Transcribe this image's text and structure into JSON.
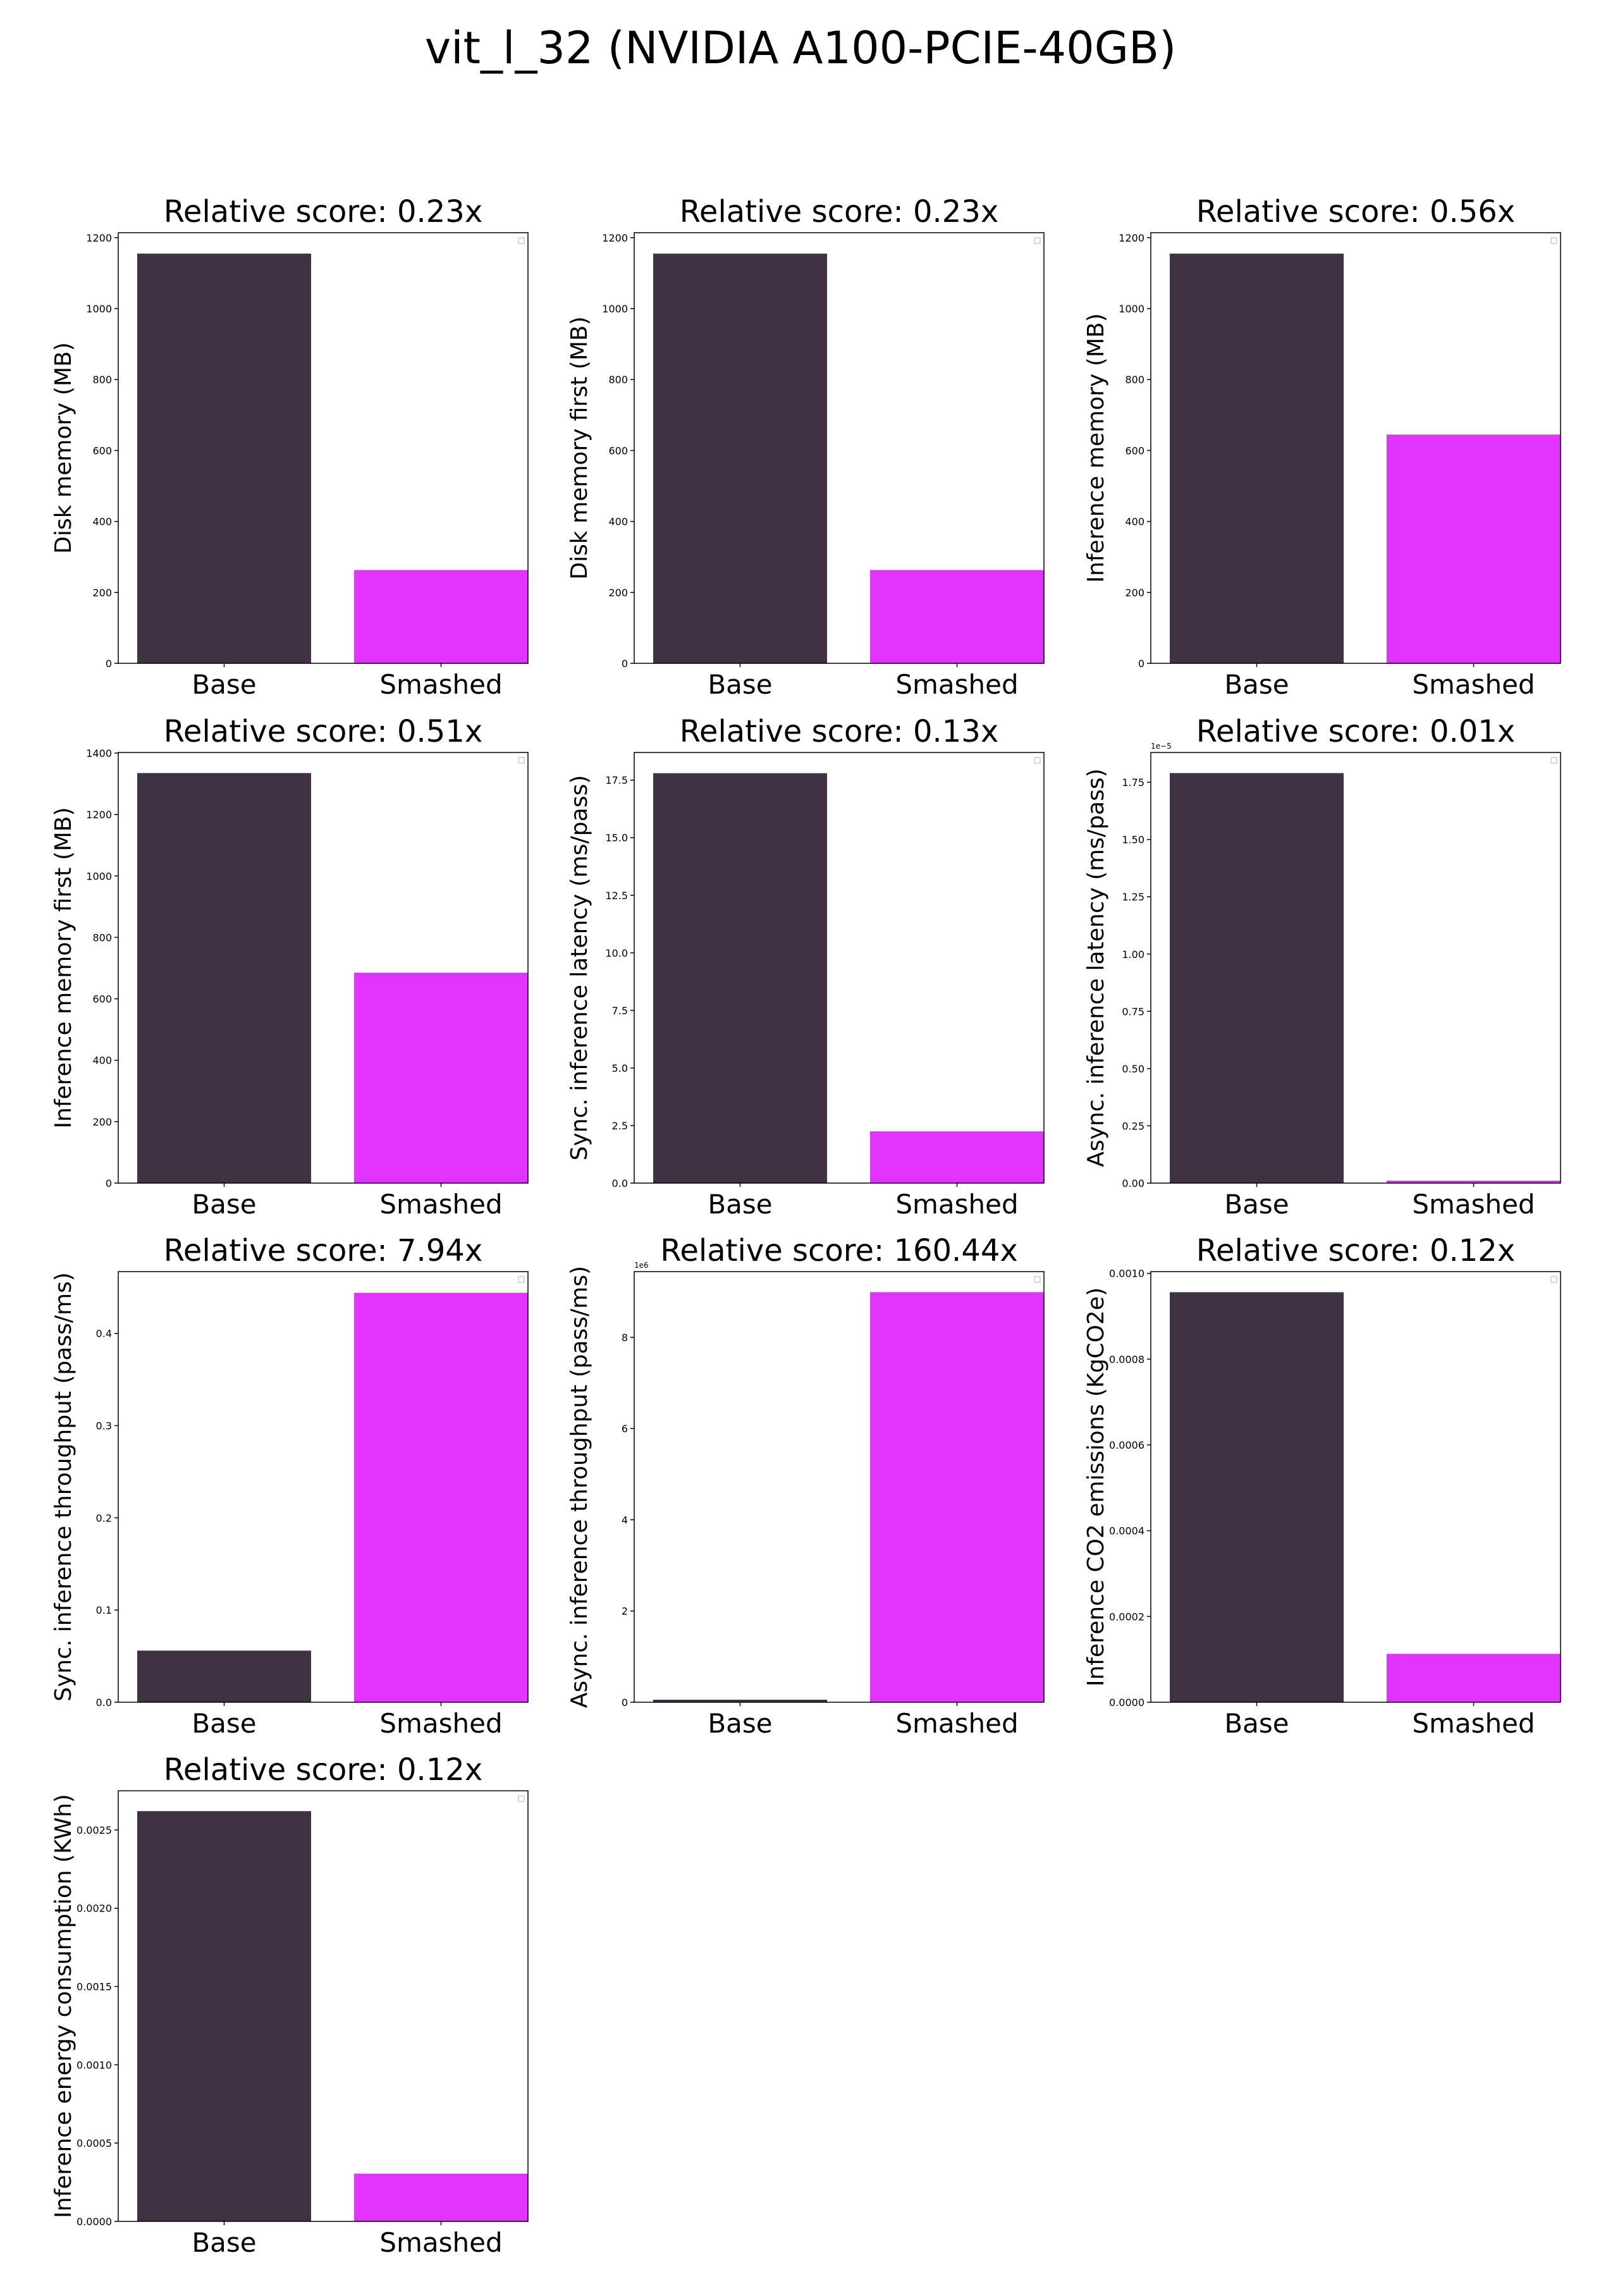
{
  "figure": {
    "title": "vit_l_32 (NVIDIA A100-PCIE-40GB)"
  },
  "chart_data": [
    {
      "type": "bar",
      "title": "Relative score: 0.23x",
      "categories": [
        "Base",
        "Smashed"
      ],
      "values": [
        1155,
        263
      ],
      "colors": [
        "#3f3243",
        "#e033ff"
      ],
      "xlabel": "",
      "ylabel": "Disk memory (MB)",
      "ylim": [
        0,
        1214
      ],
      "yticks": [
        0,
        200,
        400,
        600,
        800,
        1000,
        1200
      ],
      "ytick_labels": [
        "0",
        "200",
        "400",
        "600",
        "800",
        "1000",
        "1200"
      ],
      "offset": "",
      "grid": false,
      "legend": "empty box top-right"
    },
    {
      "type": "bar",
      "title": "Relative score: 0.23x",
      "categories": [
        "Base",
        "Smashed"
      ],
      "values": [
        1155,
        263
      ],
      "colors": [
        "#3f3243",
        "#e033ff"
      ],
      "xlabel": "",
      "ylabel": "Disk memory first (MB)",
      "ylim": [
        0,
        1214
      ],
      "yticks": [
        0,
        200,
        400,
        600,
        800,
        1000,
        1200
      ],
      "ytick_labels": [
        "0",
        "200",
        "400",
        "600",
        "800",
        "1000",
        "1200"
      ],
      "offset": "",
      "grid": false,
      "legend": "empty box top-right"
    },
    {
      "type": "bar",
      "title": "Relative score: 0.56x",
      "categories": [
        "Base",
        "Smashed"
      ],
      "values": [
        1155,
        645
      ],
      "colors": [
        "#3f3243",
        "#e033ff"
      ],
      "xlabel": "",
      "ylabel": "Inference memory (MB)",
      "ylim": [
        0,
        1214
      ],
      "yticks": [
        0,
        200,
        400,
        600,
        800,
        1000,
        1200
      ],
      "ytick_labels": [
        "0",
        "200",
        "400",
        "600",
        "800",
        "1000",
        "1200"
      ],
      "offset": "",
      "grid": false,
      "legend": "empty box top-right"
    },
    {
      "type": "bar",
      "title": "Relative score: 0.51x",
      "categories": [
        "Base",
        "Smashed"
      ],
      "values": [
        1335,
        685
      ],
      "colors": [
        "#3f3243",
        "#e033ff"
      ],
      "xlabel": "",
      "ylabel": "Inference memory first (MB)",
      "ylim": [
        0,
        1402
      ],
      "yticks": [
        0,
        200,
        400,
        600,
        800,
        1000,
        1200,
        1400
      ],
      "ytick_labels": [
        "0",
        "200",
        "400",
        "600",
        "800",
        "1000",
        "1200",
        "1400"
      ],
      "offset": "",
      "grid": false,
      "legend": "empty box top-right"
    },
    {
      "type": "bar",
      "title": "Relative score: 0.13x",
      "categories": [
        "Base",
        "Smashed"
      ],
      "values": [
        17.8,
        2.25
      ],
      "colors": [
        "#3f3243",
        "#e033ff"
      ],
      "xlabel": "",
      "ylabel": "Sync. inference latency (ms/pass)",
      "ylim": [
        0,
        18.7
      ],
      "yticks": [
        0,
        2.5,
        5,
        7.5,
        10,
        12.5,
        15,
        17.5
      ],
      "ytick_labels": [
        "0.0",
        "2.5",
        "5.0",
        "7.5",
        "10.0",
        "12.5",
        "15.0",
        "17.5"
      ],
      "offset": "",
      "grid": false,
      "legend": "empty box top-right"
    },
    {
      "type": "bar",
      "title": "Relative score: 0.01x",
      "categories": [
        "Base",
        "Smashed"
      ],
      "values": [
        1.79e-05,
        1.1e-07
      ],
      "colors": [
        "#3f3243",
        "#e033ff"
      ],
      "xlabel": "",
      "ylabel": "Async. inference latency (ms/pass)",
      "ylim": [
        0,
        1.88e-05
      ],
      "yticks": [
        0,
        2.5e-06,
        5e-06,
        7.5e-06,
        1e-05,
        1.25e-05,
        1.5e-05,
        1.75e-05
      ],
      "ytick_labels": [
        "0.00",
        "0.25",
        "0.50",
        "0.75",
        "1.00",
        "1.25",
        "1.50",
        "1.75"
      ],
      "offset": "1e−5",
      "grid": false,
      "legend": "empty box top-right"
    },
    {
      "type": "bar",
      "title": "Relative score: 7.94x",
      "categories": [
        "Base",
        "Smashed"
      ],
      "values": [
        0.056,
        0.444
      ],
      "colors": [
        "#3f3243",
        "#e033ff"
      ],
      "xlabel": "",
      "ylabel": "Sync. inference throughput (pass/ms)",
      "ylim": [
        0,
        0.467
      ],
      "yticks": [
        0,
        0.1,
        0.2,
        0.3,
        0.4
      ],
      "ytick_labels": [
        "0.0",
        "0.1",
        "0.2",
        "0.3",
        "0.4"
      ],
      "offset": "",
      "grid": false,
      "legend": "empty box top-right"
    },
    {
      "type": "bar",
      "title": "Relative score: 160.44x",
      "categories": [
        "Base",
        "Smashed"
      ],
      "values": [
        56000,
        8990000
      ],
      "colors": [
        "#3f3243",
        "#e033ff"
      ],
      "xlabel": "",
      "ylabel": "Async. inference throughput (pass/ms)",
      "ylim": [
        0,
        9440000
      ],
      "yticks": [
        0,
        2000000,
        4000000,
        6000000,
        8000000
      ],
      "ytick_labels": [
        "0",
        "2",
        "4",
        "6",
        "8"
      ],
      "offset": "1e6",
      "grid": false,
      "legend": "empty box top-right"
    },
    {
      "type": "bar",
      "title": "Relative score: 0.12x",
      "categories": [
        "Base",
        "Smashed"
      ],
      "values": [
        0.000956,
        0.000113
      ],
      "colors": [
        "#3f3243",
        "#e033ff"
      ],
      "xlabel": "",
      "ylabel": "Inference CO2 emissions (KgCO2e)",
      "ylim": [
        0,
        0.001004
      ],
      "yticks": [
        0,
        0.0002,
        0.0004,
        0.0006,
        0.0008,
        0.001
      ],
      "ytick_labels": [
        "0.0000",
        "0.0002",
        "0.0004",
        "0.0006",
        "0.0008",
        "0.0010"
      ],
      "offset": "",
      "grid": false,
      "legend": "empty box top-right"
    },
    {
      "type": "bar",
      "title": "Relative score: 0.12x",
      "categories": [
        "Base",
        "Smashed"
      ],
      "values": [
        0.00262,
        0.000305
      ],
      "colors": [
        "#3f3243",
        "#e033ff"
      ],
      "xlabel": "",
      "ylabel": "Inference energy consumption (KWh)",
      "ylim": [
        0,
        0.00275
      ],
      "yticks": [
        0,
        0.0005,
        0.001,
        0.0015,
        0.002,
        0.0025
      ],
      "ytick_labels": [
        "0.0000",
        "0.0005",
        "0.0010",
        "0.0015",
        "0.0020",
        "0.0025"
      ],
      "offset": "",
      "grid": false,
      "legend": "empty box top-right"
    }
  ]
}
